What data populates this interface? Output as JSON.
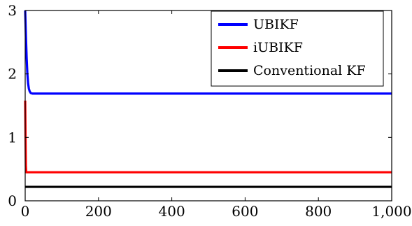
{
  "chart_data": {
    "type": "line",
    "title": "",
    "xlabel": "",
    "ylabel": "",
    "xlim": [
      0,
      1000
    ],
    "ylim": [
      0,
      3
    ],
    "x_ticks": [
      0,
      200,
      400,
      600,
      800,
      1000
    ],
    "x_tick_labels": [
      "0",
      "200",
      "400",
      "600",
      "800",
      "1,000"
    ],
    "y_ticks": [
      0,
      1,
      2,
      3
    ],
    "y_tick_labels": [
      "0",
      "1",
      "2",
      "3"
    ],
    "grid": false,
    "legend_position": "top-right",
    "series": [
      {
        "name": "UBIKF",
        "color": "#0000ff",
        "x": [
          0,
          2,
          4,
          6,
          8,
          10,
          12,
          15,
          20,
          25,
          30,
          40,
          60,
          100,
          200,
          400,
          600,
          800,
          1000
        ],
        "y": [
          3.0,
          2.6,
          2.25,
          2.0,
          1.85,
          1.77,
          1.73,
          1.7,
          1.69,
          1.69,
          1.69,
          1.69,
          1.69,
          1.69,
          1.69,
          1.69,
          1.69,
          1.69,
          1.69
        ]
      },
      {
        "name": "iUBIKF",
        "color": "#ff0000",
        "x": [
          0,
          1,
          2,
          3,
          5,
          10,
          50,
          200,
          400,
          600,
          800,
          1000
        ],
        "y": [
          1.58,
          1.0,
          0.55,
          0.45,
          0.45,
          0.45,
          0.45,
          0.45,
          0.45,
          0.45,
          0.45,
          0.45
        ]
      },
      {
        "name": "Conventional KF",
        "color": "#000000",
        "x": [
          0,
          200,
          400,
          600,
          800,
          1000
        ],
        "y": [
          0.22,
          0.22,
          0.22,
          0.22,
          0.22,
          0.22
        ]
      }
    ]
  }
}
